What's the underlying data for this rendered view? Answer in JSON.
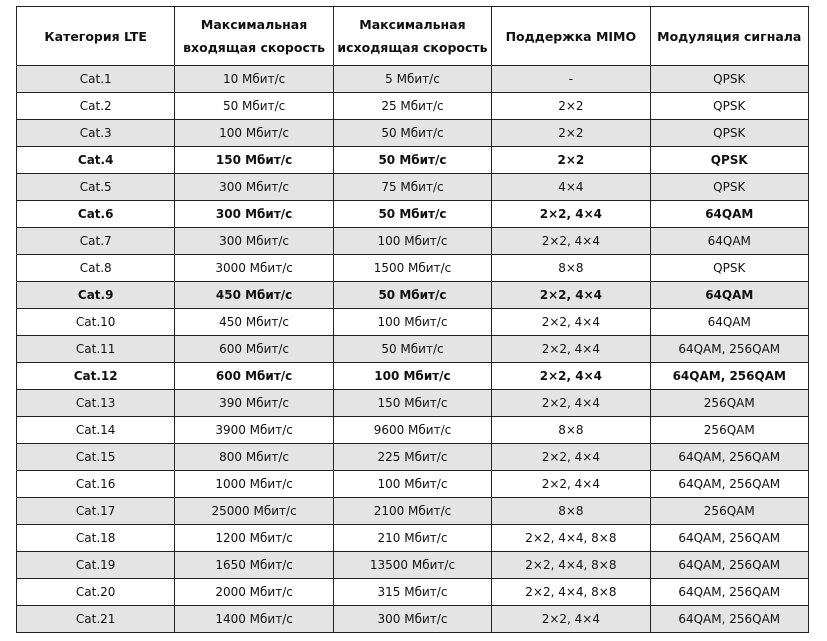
{
  "table": {
    "headers": [
      "Категория LTE",
      "Максимальная входящая скорость",
      "Максимальная исходящая скорость",
      "Поддержка MIMO",
      "Модуляция сигнала"
    ],
    "header_lines": [
      [
        "Категория LTE"
      ],
      [
        "Максимальная",
        "входящая скорость"
      ],
      [
        "Максимальная",
        "исходящая скорость"
      ],
      [
        "Поддержка MIMO"
      ],
      [
        "Модуляция сигнала"
      ]
    ],
    "rows": [
      {
        "cells": [
          "Cat.1",
          "10 Мбит/с",
          "5 Мбит/с",
          "-",
          "QPSK"
        ],
        "bold": false
      },
      {
        "cells": [
          "Cat.2",
          "50 Мбит/с",
          "25 Мбит/с",
          "2×2",
          "QPSK"
        ],
        "bold": false
      },
      {
        "cells": [
          "Cat.3",
          "100 Мбит/с",
          "50 Мбит/с",
          "2×2",
          "QPSK"
        ],
        "bold": false
      },
      {
        "cells": [
          "Cat.4",
          "150 Мбит/с",
          "50 Мбит/с",
          "2×2",
          "QPSK"
        ],
        "bold": true
      },
      {
        "cells": [
          "Cat.5",
          "300 Мбит/с",
          "75 Мбит/с",
          "4×4",
          "QPSK"
        ],
        "bold": false
      },
      {
        "cells": [
          "Cat.6",
          "300 Мбит/с",
          "50 Мбит/с",
          "2×2, 4×4",
          "64QAM"
        ],
        "bold": true
      },
      {
        "cells": [
          "Cat.7",
          "300 Мбит/с",
          "100 Мбит/с",
          "2×2, 4×4",
          "64QAM"
        ],
        "bold": false
      },
      {
        "cells": [
          "Cat.8",
          "3000 Мбит/с",
          "1500 Мбит/с",
          "8×8",
          "QPSK"
        ],
        "bold": false
      },
      {
        "cells": [
          "Cat.9",
          "450 Мбит/с",
          "50 Мбит/с",
          "2×2, 4×4",
          "64QAM"
        ],
        "bold": true
      },
      {
        "cells": [
          "Cat.10",
          "450 Мбит/с",
          "100 Мбит/с",
          "2×2, 4×4",
          "64QAM"
        ],
        "bold": false
      },
      {
        "cells": [
          "Cat.11",
          "600 Мбит/с",
          "50 Мбит/с",
          "2×2, 4×4",
          "64QAM, 256QAM"
        ],
        "bold": false
      },
      {
        "cells": [
          "Cat.12",
          "600 Мбит/с",
          "100 Мбит/с",
          "2×2, 4×4",
          "64QAM, 256QAM"
        ],
        "bold": true
      },
      {
        "cells": [
          "Cat.13",
          "390 Мбит/с",
          "150 Мбит/с",
          "2×2, 4×4",
          "256QAM"
        ],
        "bold": false
      },
      {
        "cells": [
          "Cat.14",
          "3900 Мбит/с",
          "9600 Мбит/с",
          "8×8",
          "256QAM"
        ],
        "bold": false
      },
      {
        "cells": [
          "Cat.15",
          "800 Мбит/с",
          "225 Мбит/с",
          "2×2, 4×4",
          "64QAM, 256QAM"
        ],
        "bold": false
      },
      {
        "cells": [
          "Cat.16",
          "1000 Мбит/с",
          "100 Мбит/с",
          "2×2, 4×4",
          "64QAM, 256QAM"
        ],
        "bold": false
      },
      {
        "cells": [
          "Cat.17",
          "25000 Мбит/с",
          "2100 Мбит/с",
          "8×8",
          "256QAM"
        ],
        "bold": false
      },
      {
        "cells": [
          "Cat.18",
          "1200 Мбит/с",
          "210 Мбит/с",
          "2×2, 4×4, 8×8",
          "64QAM, 256QAM"
        ],
        "bold": false
      },
      {
        "cells": [
          "Cat.19",
          "1650 Мбит/с",
          "13500 Мбит/с",
          "2×2, 4×4, 8×8",
          "64QAM, 256QAM"
        ],
        "bold": false
      },
      {
        "cells": [
          "Cat.20",
          "2000 Мбит/с",
          "315 Мбит/с",
          "2×2, 4×4, 8×8",
          "64QAM, 256QAM"
        ],
        "bold": false
      },
      {
        "cells": [
          "Cat.21",
          "1400 Мбит/с",
          "300 Мбит/с",
          "2×2, 4×4",
          "64QAM, 256QAM"
        ],
        "bold": false
      }
    ],
    "colors": {
      "shaded_row": "#e4e4e4",
      "border": "#222222"
    }
  }
}
